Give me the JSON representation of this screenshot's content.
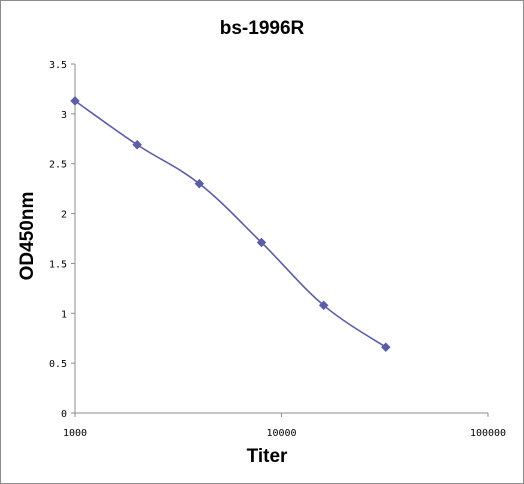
{
  "chart_data": {
    "type": "scatter",
    "title": "bs-1996R",
    "xlabel": "Titer",
    "ylabel": "OD450nm",
    "x_scale": "log",
    "xlim": [
      1000,
      100000
    ],
    "ylim": [
      0,
      3.5
    ],
    "x_ticks": [
      1000,
      10000,
      100000
    ],
    "x_tick_labels": [
      "1000",
      "10000",
      "100000"
    ],
    "y_ticks": [
      0,
      0.5,
      1,
      1.5,
      2,
      2.5,
      3,
      3.5
    ],
    "y_tick_labels": [
      "0",
      "0.5",
      "1",
      "1.5",
      "2",
      "2.5",
      "3",
      "3.5"
    ],
    "grid": false,
    "legend": "none",
    "line": "smoothed",
    "marker": "diamond",
    "colors": {
      "series": "#5b5ea6",
      "axis": "#8c8c8c"
    },
    "series": [
      {
        "x": [
          1000,
          2000,
          4000,
          8000,
          16000,
          32000
        ],
        "y": [
          3.13,
          2.69,
          2.3,
          1.71,
          1.08,
          0.66
        ]
      }
    ]
  }
}
